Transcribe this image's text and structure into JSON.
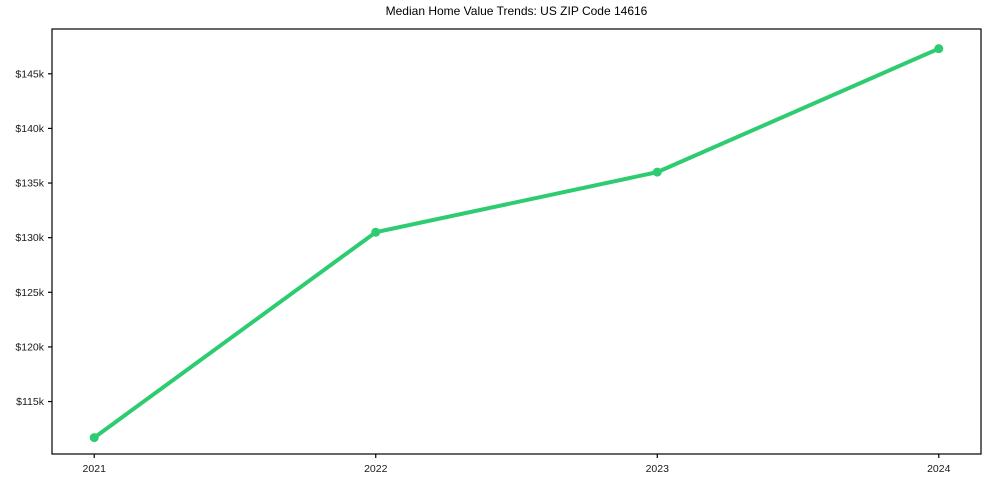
{
  "page": {
    "background": "#ffffff"
  },
  "chart_data": {
    "type": "line",
    "title": "Median Home Value Trends: US ZIP Code 14616",
    "xlabel": "",
    "ylabel": "",
    "grid": false,
    "legend": "none",
    "marker": "circle",
    "line_width": 4,
    "marker_radius": 4.5,
    "axis_color": "#000000",
    "tick_label_color": "#1a1a1a",
    "tick_font_size": 10.5,
    "x": [
      2021,
      2022,
      2023,
      2024
    ],
    "series": [
      {
        "name": "Median Home Value",
        "color": "#2ecc71",
        "values": [
          111700,
          130500,
          136000,
          147300
        ]
      }
    ],
    "xlim": [
      2020.85,
      2024.15
    ],
    "ylim": [
      110200,
      149100
    ],
    "x_ticks": [
      {
        "value": 2021,
        "label": "2021"
      },
      {
        "value": 2022,
        "label": "2022"
      },
      {
        "value": 2023,
        "label": "2023"
      },
      {
        "value": 2024,
        "label": "2024"
      }
    ],
    "y_ticks": [
      {
        "value": 115000,
        "label": "$115k"
      },
      {
        "value": 120000,
        "label": "$120k"
      },
      {
        "value": 125000,
        "label": "$125k"
      },
      {
        "value": 130000,
        "label": "$130k"
      },
      {
        "value": 135000,
        "label": "$135k"
      },
      {
        "value": 140000,
        "label": "$140k"
      },
      {
        "value": 145000,
        "label": "$145k"
      }
    ]
  }
}
